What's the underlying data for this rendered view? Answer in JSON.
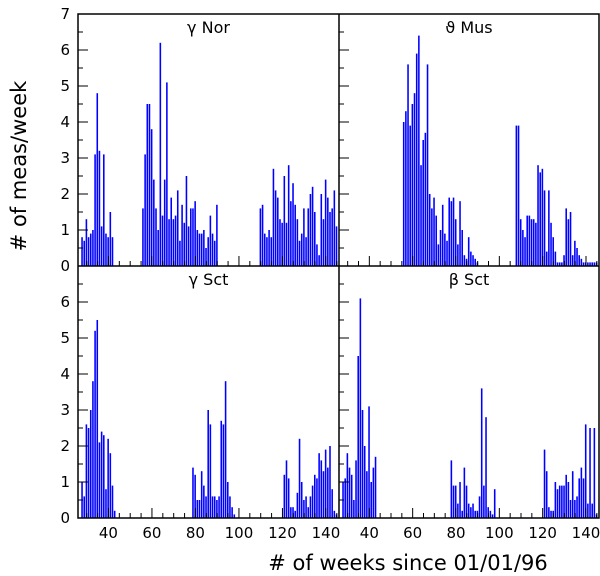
{
  "figure": {
    "xlabel": "# of weeks since 01/01/96",
    "ylabel": "# of meas/week",
    "bar_color": "#0000ff",
    "frame_color": "#000000",
    "x_ticks": [
      "40",
      "60",
      "80",
      "100",
      "120",
      "140"
    ],
    "y_ticks": [
      "0",
      "1",
      "2",
      "3",
      "4",
      "5",
      "6",
      "7"
    ]
  },
  "chart_data": [
    {
      "type": "bar",
      "title": "γ Nor",
      "xlim": [
        26,
        146
      ],
      "ylim": [
        0,
        7
      ],
      "x": [
        28,
        29,
        30,
        31,
        32,
        33,
        34,
        35,
        36,
        37,
        38,
        39,
        40,
        41,
        42,
        56,
        57,
        58,
        59,
        60,
        61,
        62,
        63,
        64,
        65,
        66,
        67,
        68,
        69,
        70,
        71,
        72,
        73,
        74,
        75,
        76,
        77,
        78,
        79,
        80,
        81,
        82,
        83,
        84,
        85,
        86,
        87,
        88,
        89,
        90,
        110,
        111,
        112,
        113,
        114,
        115,
        116,
        117,
        118,
        119,
        120,
        121,
        122,
        123,
        124,
        125,
        126,
        127,
        128,
        129,
        130,
        131,
        132,
        133,
        134,
        135,
        136,
        137,
        138,
        139,
        140,
        141,
        142,
        143,
        144,
        145
      ],
      "values": [
        0.8,
        0.7,
        1.3,
        0.8,
        0.9,
        1.0,
        3.1,
        4.8,
        3.2,
        1.1,
        3.1,
        0.9,
        0.8,
        1.5,
        0.8,
        1.6,
        3.1,
        4.5,
        4.5,
        3.8,
        2.4,
        1.6,
        1.0,
        6.2,
        1.4,
        2.4,
        5.1,
        1.3,
        1.9,
        1.3,
        1.4,
        2.1,
        0.7,
        1.7,
        1.2,
        2.5,
        1.1,
        1.6,
        1.6,
        1.8,
        1.0,
        0.9,
        0.9,
        1.0,
        0.5,
        0.8,
        1.4,
        0.9,
        0.7,
        1.7,
        1.6,
        1.7,
        0.9,
        0.8,
        1.0,
        0.8,
        2.7,
        2.1,
        1.9,
        1.3,
        1.2,
        2.5,
        1.2,
        2.8,
        1.8,
        2.3,
        1.7,
        1.3,
        0.7,
        0.9,
        1.6,
        0.8,
        1.6,
        2.0,
        2.2,
        1.5,
        0.6,
        0.3,
        2.0,
        1.3,
        2.4,
        1.9,
        1.5,
        1.6,
        2.1,
        1.1
      ]
    },
    {
      "type": "bar",
      "title": "ϑ Mus",
      "xlim": [
        26,
        146
      ],
      "ylim": [
        0,
        7
      ],
      "x": [
        56,
        57,
        58,
        59,
        60,
        61,
        62,
        63,
        64,
        65,
        66,
        67,
        68,
        69,
        70,
        71,
        72,
        73,
        74,
        75,
        76,
        77,
        78,
        79,
        80,
        81,
        82,
        83,
        84,
        85,
        86,
        87,
        88,
        89,
        90,
        108,
        109,
        110,
        111,
        112,
        113,
        114,
        115,
        116,
        117,
        118,
        119,
        120,
        121,
        122,
        123,
        124,
        125,
        126,
        127,
        128,
        129,
        130,
        131,
        132,
        133,
        134,
        135,
        136,
        137,
        138,
        139,
        140,
        141,
        142,
        143,
        144,
        145
      ],
      "values": [
        4.0,
        4.3,
        5.6,
        3.9,
        4.5,
        4.8,
        5.9,
        6.4,
        2.8,
        3.5,
        3.7,
        5.6,
        2.0,
        1.6,
        1.9,
        1.4,
        0.6,
        1.0,
        1.7,
        0.9,
        0.7,
        1.9,
        1.8,
        1.9,
        1.3,
        0.6,
        1.8,
        1.0,
        0.3,
        0.2,
        0.8,
        0.4,
        0.3,
        0.2,
        0.1,
        3.9,
        3.9,
        1.3,
        1.0,
        0.8,
        1.4,
        1.4,
        1.3,
        1.3,
        1.2,
        2.8,
        2.6,
        2.7,
        2.1,
        0.4,
        2.1,
        1.2,
        0.8,
        0.4,
        0.1,
        0.1,
        0.1,
        0.3,
        1.6,
        1.3,
        1.5,
        0.3,
        0.7,
        0.5,
        0.3,
        0.2,
        0.1,
        0.1,
        0.1,
        0.1,
        0.1,
        0.1,
        0.1
      ]
    },
    {
      "type": "bar",
      "title": "γ Sct",
      "xlim": [
        26,
        146
      ],
      "ylim": [
        0,
        7
      ],
      "x": [
        28,
        29,
        30,
        31,
        32,
        33,
        34,
        35,
        36,
        37,
        38,
        39,
        40,
        41,
        42,
        43,
        79,
        80,
        81,
        82,
        83,
        84,
        85,
        86,
        87,
        88,
        89,
        90,
        91,
        92,
        93,
        94,
        95,
        96,
        97,
        98,
        121,
        122,
        123,
        124,
        125,
        126,
        127,
        128,
        129,
        130,
        131,
        132,
        133,
        134,
        135,
        136,
        137,
        138,
        139,
        140,
        141,
        142,
        143,
        144,
        145
      ],
      "values": [
        1.0,
        0.6,
        2.6,
        2.5,
        3.0,
        3.8,
        5.2,
        5.5,
        2.1,
        2.4,
        2.3,
        0.8,
        2.2,
        1.8,
        0.9,
        0.2,
        1.4,
        1.2,
        0.5,
        0.5,
        1.3,
        0.9,
        0.6,
        3.0,
        2.6,
        0.6,
        0.6,
        0.5,
        0.6,
        2.7,
        2.6,
        3.8,
        1.0,
        0.6,
        0.3,
        0.1,
        1.2,
        1.6,
        1.1,
        0.3,
        0.3,
        0.2,
        0.7,
        2.2,
        1.0,
        0.5,
        0.6,
        0.3,
        0.6,
        0.9,
        1.2,
        1.1,
        1.8,
        1.6,
        1.3,
        1.9,
        1.4,
        2.0,
        0.8,
        0.2,
        0.1
      ]
    },
    {
      "type": "bar",
      "title": "β Sct",
      "xlim": [
        26,
        146
      ],
      "ylim": [
        0,
        7
      ],
      "x": [
        28,
        29,
        30,
        31,
        32,
        33,
        34,
        35,
        36,
        37,
        38,
        39,
        40,
        41,
        42,
        43,
        78,
        79,
        80,
        81,
        82,
        83,
        84,
        85,
        86,
        87,
        88,
        89,
        90,
        91,
        92,
        93,
        94,
        95,
        96,
        97,
        98,
        121,
        122,
        123,
        124,
        125,
        126,
        127,
        128,
        129,
        130,
        131,
        132,
        133,
        134,
        135,
        136,
        137,
        138,
        139,
        140,
        141,
        142,
        143,
        144,
        145
      ],
      "values": [
        1.0,
        1.1,
        1.8,
        1.4,
        1.2,
        0.5,
        1.6,
        4.5,
        6.1,
        3.0,
        2.0,
        1.3,
        3.1,
        1.0,
        1.4,
        1.7,
        1.6,
        0.9,
        0.9,
        0.4,
        1.0,
        0.2,
        1.4,
        0.9,
        0.4,
        0.3,
        0.4,
        0.2,
        0.2,
        0.6,
        3.6,
        0.9,
        2.8,
        0.3,
        0.2,
        0.1,
        0.8,
        1.9,
        1.3,
        0.3,
        0.2,
        0.2,
        1.0,
        0.8,
        0.9,
        0.9,
        0.9,
        1.2,
        1.0,
        0.5,
        1.3,
        0.5,
        0.6,
        1.1,
        1.4,
        1.1,
        2.6,
        0.4,
        2.5,
        0.4,
        2.5,
        0.1
      ]
    }
  ]
}
